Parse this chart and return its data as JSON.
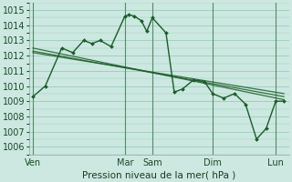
{
  "xlabel": "Pression niveau de la mer( hPa )",
  "background_color": "#cce8e0",
  "grid_color": "#99ccbb",
  "line_color": "#1a5c28",
  "vline_color": "#447755",
  "ylim": [
    1005.5,
    1015.5
  ],
  "xlim": [
    0,
    9.5
  ],
  "yticks": [
    1006,
    1007,
    1008,
    1009,
    1010,
    1011,
    1012,
    1013,
    1014,
    1015
  ],
  "day_labels": [
    "Ven",
    "Mar",
    "Sam",
    "Dim",
    "Lun"
  ],
  "day_positions": [
    0.15,
    3.5,
    4.5,
    6.7,
    9.0
  ],
  "vline_positions": [
    0.15,
    3.5,
    4.5,
    6.7,
    9.0
  ],
  "series_main": {
    "x": [
      0.15,
      0.6,
      1.2,
      1.6,
      2.0,
      2.3,
      2.6,
      3.0,
      3.5,
      3.65,
      3.85,
      4.1,
      4.3,
      4.5,
      5.0,
      5.3,
      5.6,
      6.0,
      6.4,
      6.7,
      7.1,
      7.5,
      7.9,
      8.3,
      8.65,
      9.0,
      9.3
    ],
    "y": [
      1009.3,
      1010.0,
      1012.5,
      1012.2,
      1013.0,
      1012.8,
      1013.0,
      1012.6,
      1014.6,
      1014.7,
      1014.6,
      1014.3,
      1013.6,
      1014.5,
      1013.5,
      1009.6,
      1009.8,
      1010.4,
      1010.3,
      1009.5,
      1009.2,
      1009.5,
      1008.8,
      1006.5,
      1007.2,
      1009.0,
      1009.0
    ]
  },
  "series_trends": [
    {
      "x": [
        0.15,
        9.3
      ],
      "y": [
        1012.5,
        1009.1
      ]
    },
    {
      "x": [
        0.15,
        9.3
      ],
      "y": [
        1012.3,
        1009.3
      ]
    },
    {
      "x": [
        0.15,
        9.3
      ],
      "y": [
        1012.2,
        1009.5
      ]
    }
  ]
}
